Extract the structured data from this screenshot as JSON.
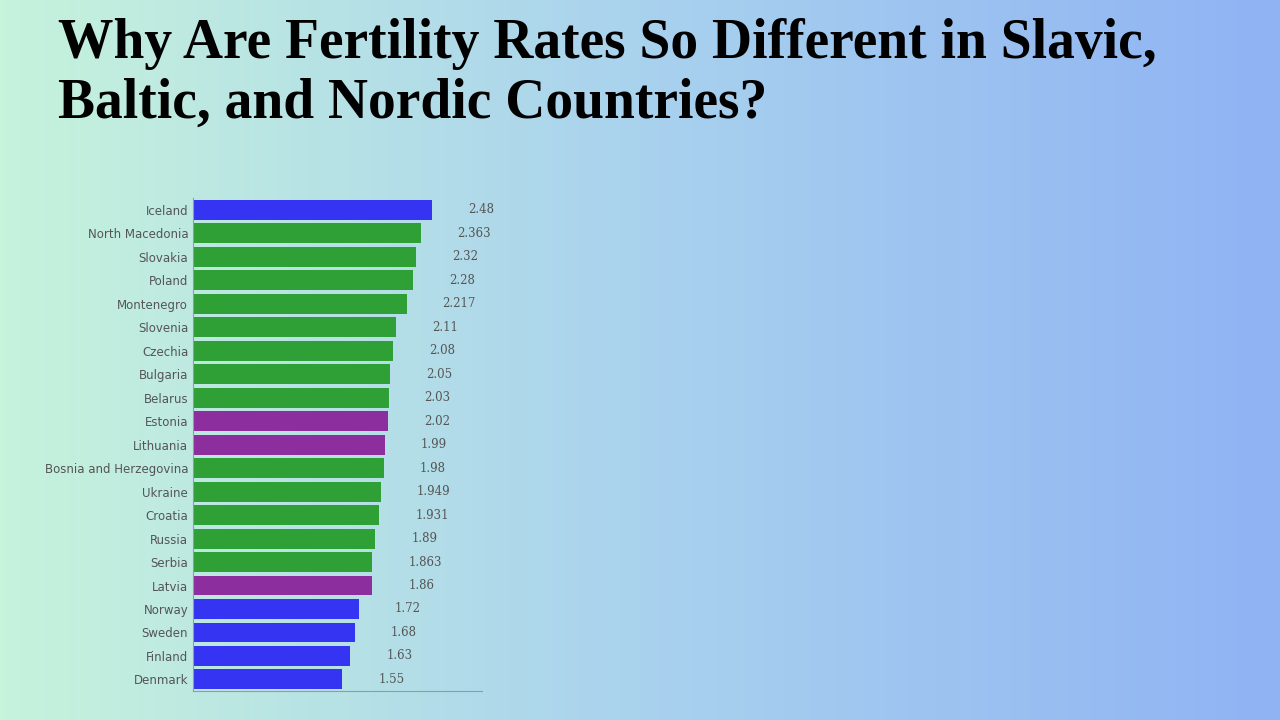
{
  "chart_data": {
    "type": "bar",
    "orientation": "horizontal",
    "title": "Why Are Fertility Rates So Different in Slavic, Baltic, and Nordic Countries?",
    "categories": [
      "Iceland",
      "North Macedonia",
      "Slovakia",
      "Poland",
      "Montenegro",
      "Slovenia",
      "Czechia",
      "Bulgaria",
      "Belarus",
      "Estonia",
      "Lithuania",
      "Bosnia and Herzegovina",
      "Ukraine",
      "Croatia",
      "Russia",
      "Serbia",
      "Latvia",
      "Norway",
      "Sweden",
      "Finland",
      "Denmark"
    ],
    "values": [
      2.48,
      2.363,
      2.32,
      2.28,
      2.217,
      2.11,
      2.08,
      2.05,
      2.03,
      2.02,
      1.99,
      1.98,
      1.949,
      1.931,
      1.89,
      1.863,
      1.86,
      1.72,
      1.68,
      1.63,
      1.55
    ],
    "colors": [
      "#3434f2",
      "#2fa035",
      "#2fa035",
      "#2fa035",
      "#2fa035",
      "#2fa035",
      "#2fa035",
      "#2fa035",
      "#2fa035",
      "#8c2e9e",
      "#8c2e9e",
      "#2fa035",
      "#2fa035",
      "#2fa035",
      "#2fa035",
      "#2fa035",
      "#8c2e9e",
      "#3434f2",
      "#3434f2",
      "#3434f2",
      "#3434f2"
    ],
    "xlim": [
      0,
      3
    ],
    "xticks": [],
    "data_labels": true,
    "tick_labels": "y",
    "grid": false
  }
}
